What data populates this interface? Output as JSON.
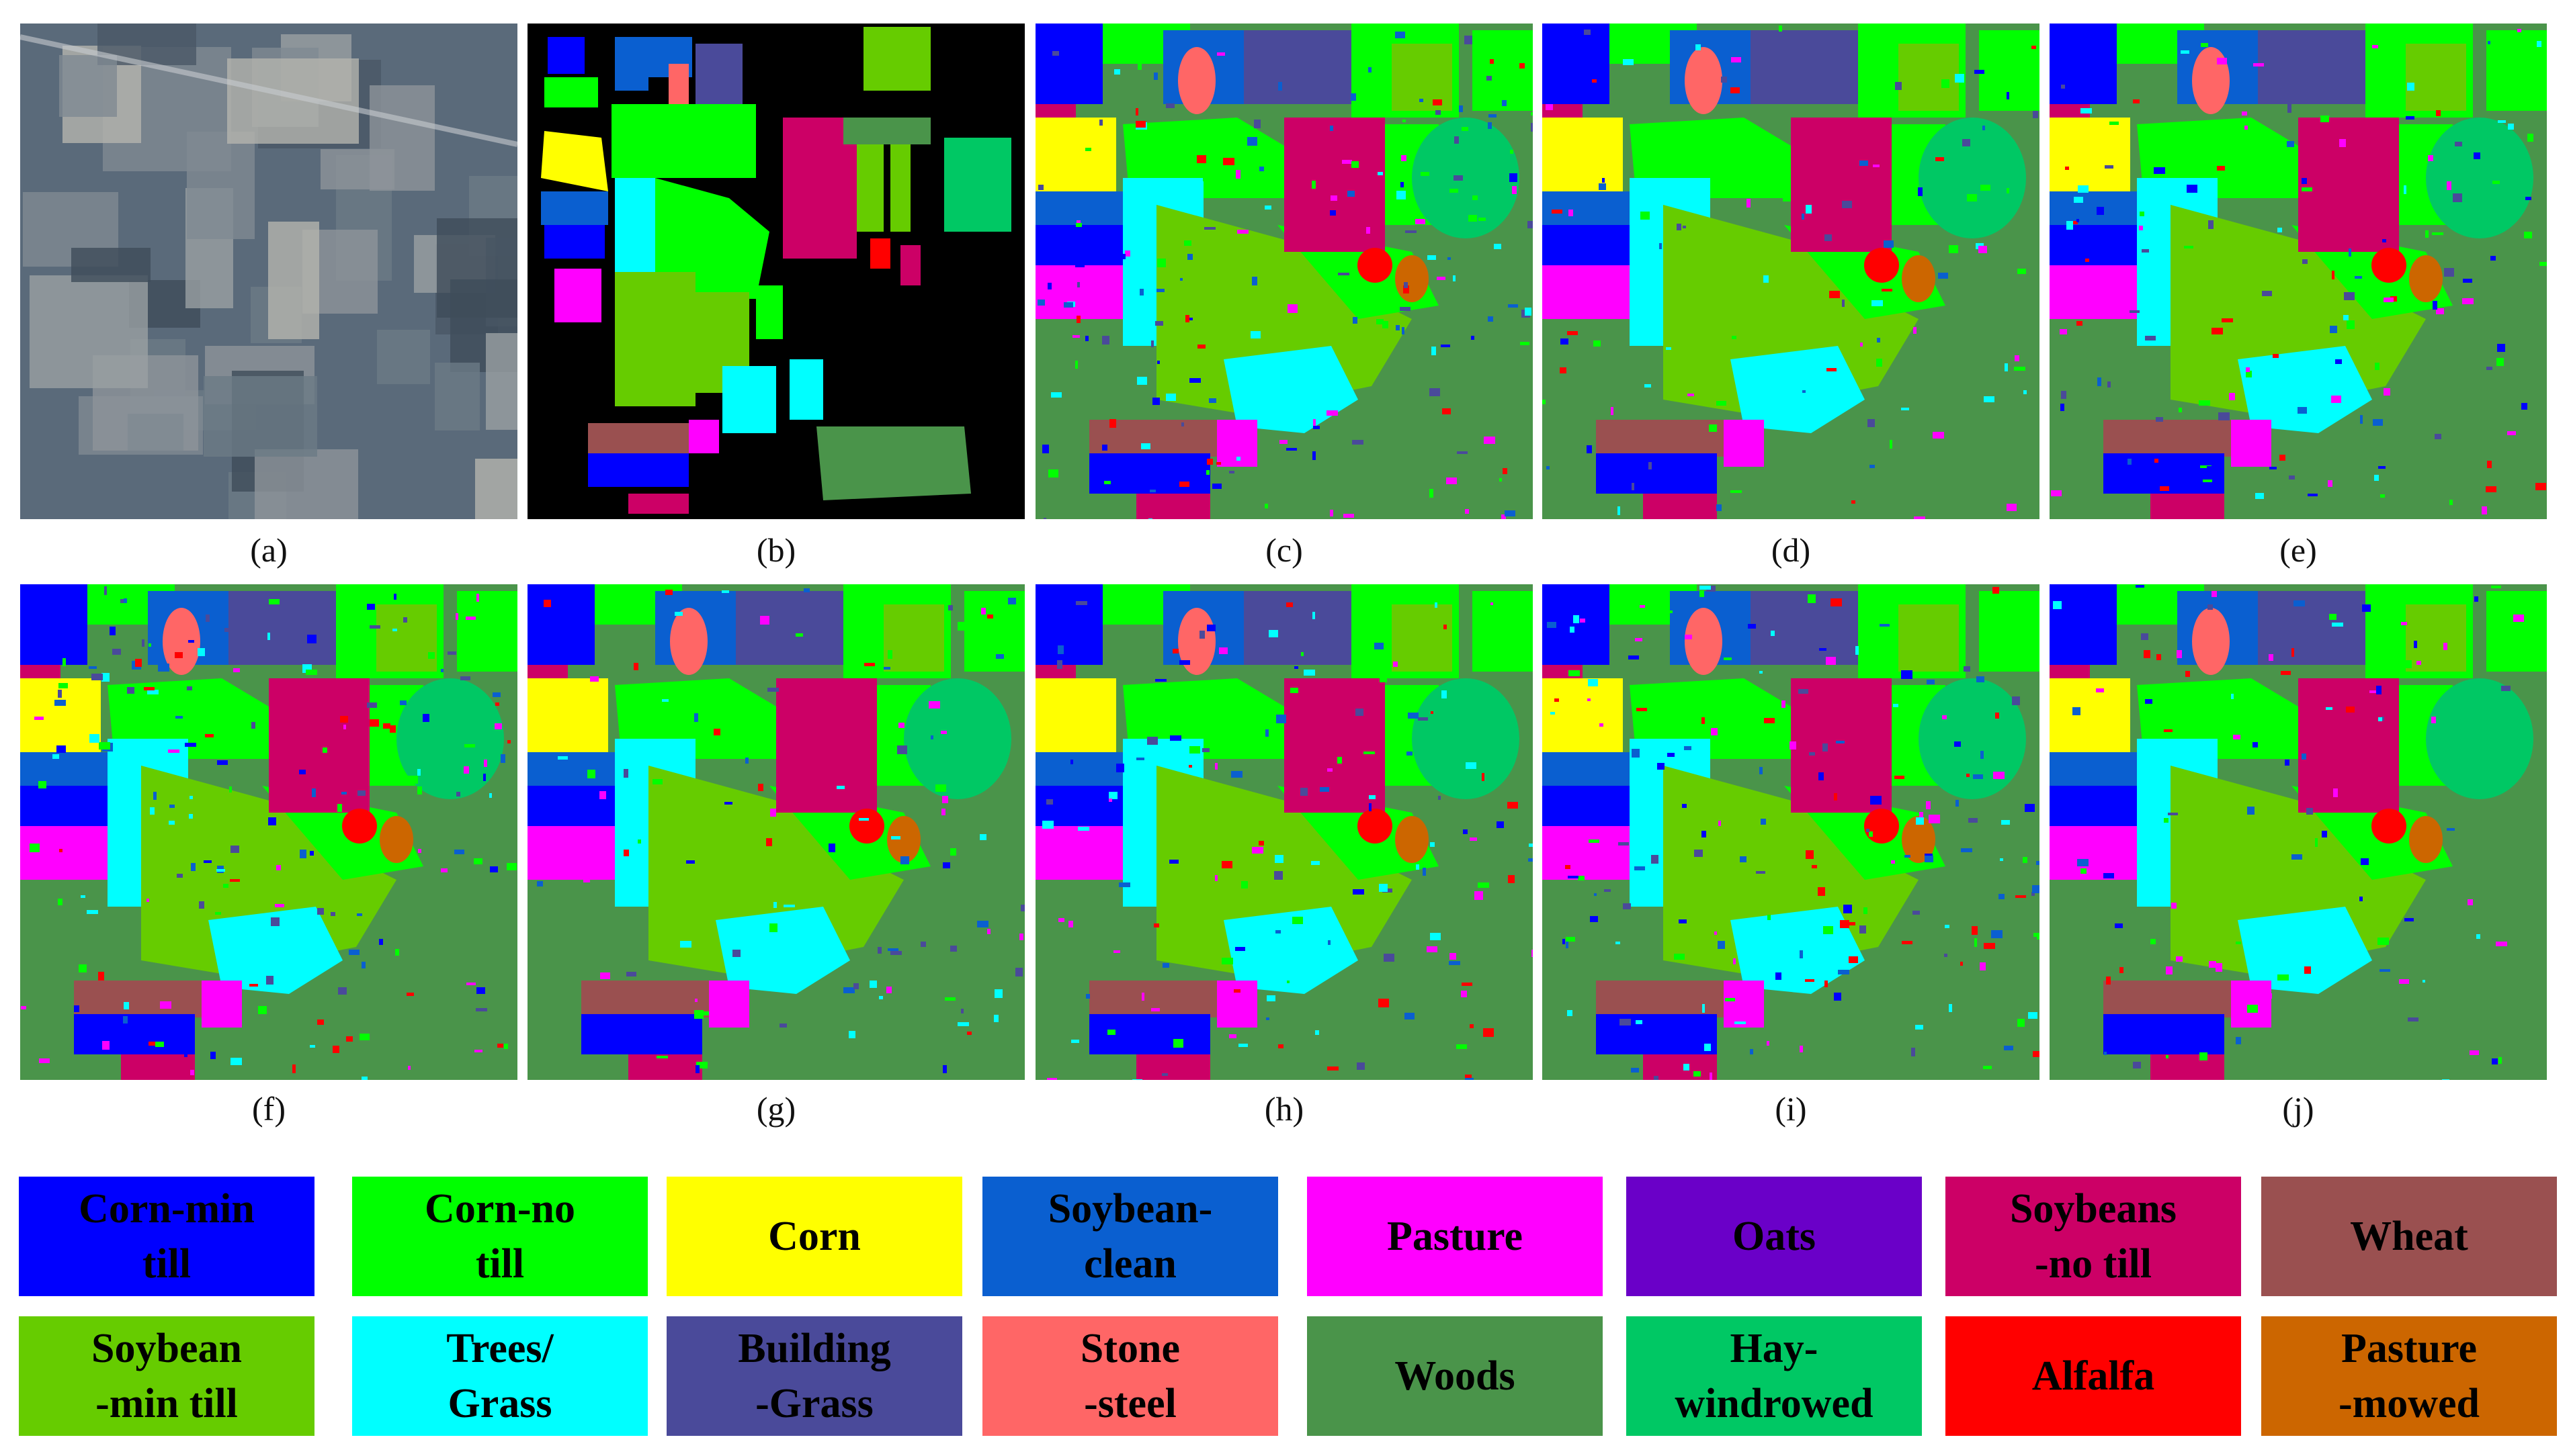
{
  "panels": [
    {
      "id": "a",
      "caption": "(a)"
    },
    {
      "id": "b",
      "caption": "(b)"
    },
    {
      "id": "c",
      "caption": "(c)"
    },
    {
      "id": "d",
      "caption": "(d)"
    },
    {
      "id": "e",
      "caption": "(e)"
    },
    {
      "id": "f",
      "caption": "(f)"
    },
    {
      "id": "g",
      "caption": "(g)"
    },
    {
      "id": "h",
      "caption": "(h)"
    },
    {
      "id": "i",
      "caption": "(i)"
    },
    {
      "id": "j",
      "caption": "(j)"
    }
  ],
  "legend": [
    {
      "label": "Corn-min till",
      "color": "#0000ff"
    },
    {
      "label": "Corn-no till",
      "color": "#00ff00"
    },
    {
      "label": "Corn",
      "color": "#ffff00"
    },
    {
      "label": "Soybean-clean",
      "color": "#0a5fd0"
    },
    {
      "label": "Pasture",
      "color": "#ff00ff"
    },
    {
      "label": "Oats",
      "color": "#6a00c8"
    },
    {
      "label": "Soybeans-no till",
      "color": "#cc0066"
    },
    {
      "label": "Wheat",
      "color": "#9a5050"
    },
    {
      "label": "Soybean-min till",
      "color": "#66cc00"
    },
    {
      "label": "Trees/Grass",
      "color": "#00ffff"
    },
    {
      "label": "Building-Grass",
      "color": "#4a4a9a"
    },
    {
      "label": "Stone-steel",
      "color": "#ff6666"
    },
    {
      "label": "Woods",
      "color": "#4a944a"
    },
    {
      "label": "Hay-windrowed",
      "color": "#00c864"
    },
    {
      "label": "Alfalfa",
      "color": "#ff0000"
    },
    {
      "label": "Pasture-mowed",
      "color": "#cc6600"
    }
  ],
  "legend_lines": [
    [
      "Corn-min",
      "till"
    ],
    [
      "Corn-no",
      "till"
    ],
    [
      "Corn"
    ],
    [
      "Soybean-",
      "clean"
    ],
    [
      "Pasture"
    ],
    [
      "Oats"
    ],
    [
      "Soybeans",
      "-no till"
    ],
    [
      "Wheat"
    ],
    [
      "Soybean",
      "-min till"
    ],
    [
      "Trees/",
      "Grass"
    ],
    [
      "Building",
      "-Grass"
    ],
    [
      "Stone",
      "-steel"
    ],
    [
      "Woods"
    ],
    [
      "Hay-",
      "windrowed"
    ],
    [
      "Alfalfa"
    ],
    [
      "Pasture",
      "-mowed"
    ]
  ]
}
